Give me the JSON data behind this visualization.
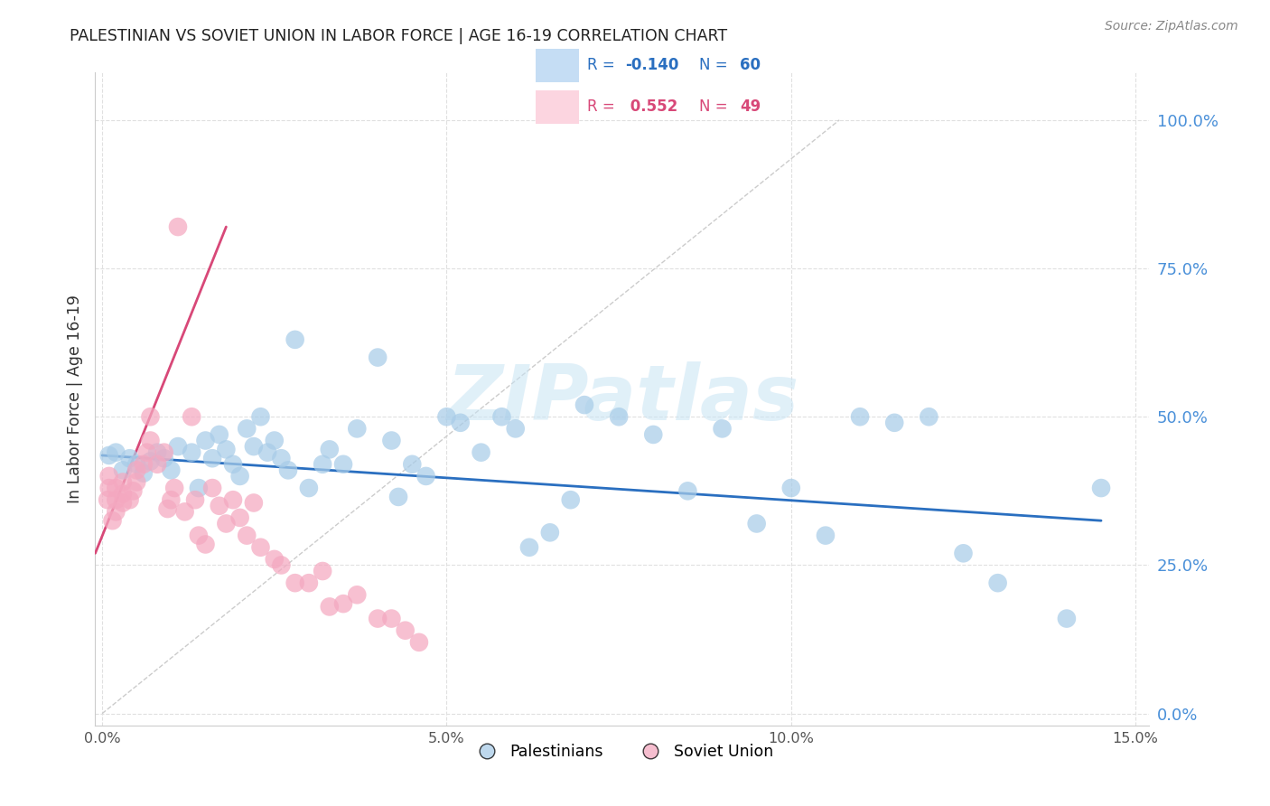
{
  "title": "PALESTINIAN VS SOVIET UNION IN LABOR FORCE | AGE 16-19 CORRELATION CHART",
  "source": "Source: ZipAtlas.com",
  "ylabel": "In Labor Force | Age 16-19",
  "xlim": [
    -0.001,
    0.152
  ],
  "ylim": [
    -0.02,
    1.08
  ],
  "ytick_vals": [
    0.0,
    0.25,
    0.5,
    0.75,
    1.0
  ],
  "xtick_vals": [
    0.0,
    0.05,
    0.1,
    0.15
  ],
  "blue_R": -0.14,
  "blue_N": 60,
  "pink_R": 0.552,
  "pink_N": 49,
  "blue_scatter_color": "#a8cce8",
  "pink_scatter_color": "#f4a8c0",
  "blue_line_color": "#2a6fc0",
  "pink_line_color": "#d84878",
  "diag_line_color": "#cccccc",
  "grid_color": "#e0e0e0",
  "right_tick_color": "#4a90d9",
  "legend_box_blue_fill": "#c5ddf4",
  "legend_box_pink_fill": "#fcd5e0",
  "legend_blue_text": "#2a6fc0",
  "legend_pink_text": "#d84878",
  "watermark_color": "#c8e4f4",
  "title_color": "#222222",
  "source_color": "#888888",
  "ylabel_color": "#333333",
  "blue_x": [
    0.001,
    0.002,
    0.003,
    0.004,
    0.005,
    0.006,
    0.007,
    0.008,
    0.009,
    0.01,
    0.011,
    0.013,
    0.014,
    0.015,
    0.016,
    0.017,
    0.018,
    0.019,
    0.02,
    0.021,
    0.022,
    0.023,
    0.024,
    0.025,
    0.026,
    0.027,
    0.028,
    0.03,
    0.032,
    0.033,
    0.035,
    0.037,
    0.04,
    0.042,
    0.043,
    0.045,
    0.047,
    0.05,
    0.052,
    0.055,
    0.058,
    0.06,
    0.062,
    0.065,
    0.068,
    0.07,
    0.075,
    0.08,
    0.085,
    0.09,
    0.095,
    0.1,
    0.105,
    0.11,
    0.115,
    0.12,
    0.125,
    0.13,
    0.14,
    0.145
  ],
  "blue_y": [
    0.435,
    0.44,
    0.41,
    0.43,
    0.42,
    0.405,
    0.425,
    0.44,
    0.43,
    0.41,
    0.45,
    0.44,
    0.38,
    0.46,
    0.43,
    0.47,
    0.445,
    0.42,
    0.4,
    0.48,
    0.45,
    0.5,
    0.44,
    0.46,
    0.43,
    0.41,
    0.63,
    0.38,
    0.42,
    0.445,
    0.42,
    0.48,
    0.6,
    0.46,
    0.365,
    0.42,
    0.4,
    0.5,
    0.49,
    0.44,
    0.5,
    0.48,
    0.28,
    0.305,
    0.36,
    0.52,
    0.5,
    0.47,
    0.375,
    0.48,
    0.32,
    0.38,
    0.3,
    0.5,
    0.49,
    0.5,
    0.27,
    0.22,
    0.16,
    0.38
  ],
  "pink_x": [
    0.0008,
    0.001,
    0.001,
    0.0015,
    0.002,
    0.002,
    0.002,
    0.003,
    0.003,
    0.003,
    0.004,
    0.0045,
    0.005,
    0.005,
    0.006,
    0.0065,
    0.007,
    0.007,
    0.008,
    0.009,
    0.0095,
    0.01,
    0.0105,
    0.011,
    0.012,
    0.013,
    0.0135,
    0.014,
    0.015,
    0.016,
    0.017,
    0.018,
    0.019,
    0.02,
    0.021,
    0.022,
    0.023,
    0.025,
    0.026,
    0.028,
    0.03,
    0.032,
    0.033,
    0.035,
    0.037,
    0.04,
    0.042,
    0.044,
    0.046
  ],
  "pink_y": [
    0.36,
    0.38,
    0.4,
    0.325,
    0.34,
    0.36,
    0.38,
    0.355,
    0.37,
    0.39,
    0.36,
    0.375,
    0.39,
    0.41,
    0.42,
    0.44,
    0.46,
    0.5,
    0.42,
    0.44,
    0.345,
    0.36,
    0.38,
    0.82,
    0.34,
    0.5,
    0.36,
    0.3,
    0.285,
    0.38,
    0.35,
    0.32,
    0.36,
    0.33,
    0.3,
    0.355,
    0.28,
    0.26,
    0.25,
    0.22,
    0.22,
    0.24,
    0.18,
    0.185,
    0.2,
    0.16,
    0.16,
    0.14,
    0.12
  ]
}
